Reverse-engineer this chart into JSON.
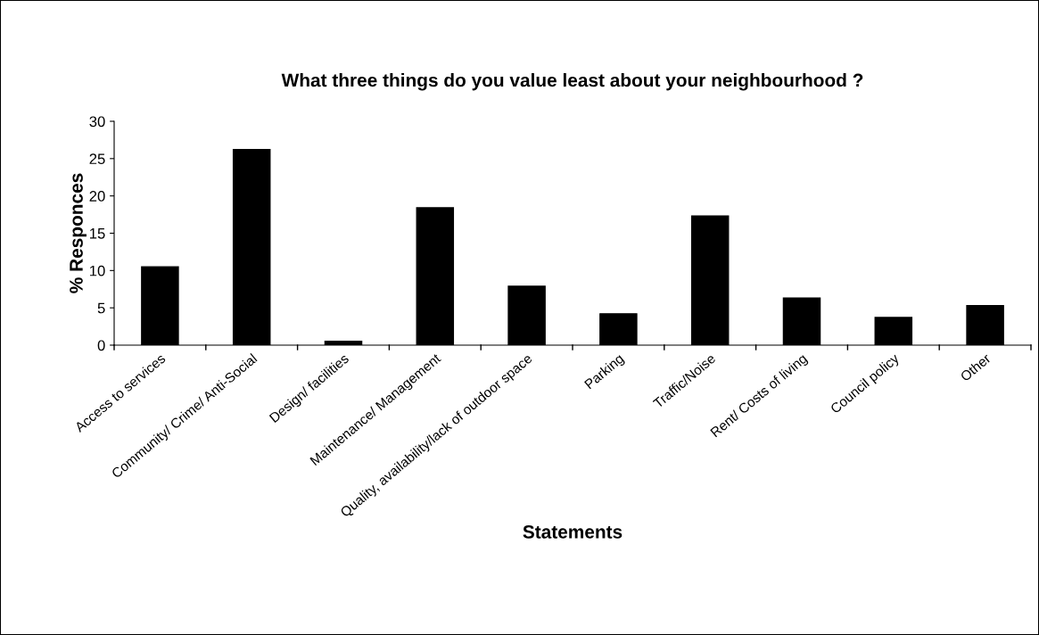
{
  "chart_data": {
    "type": "bar",
    "title": "What three things do you value least about your neighbourhood ?",
    "xlabel": "Statements",
    "ylabel": "% Responces",
    "categories": [
      "Access to services",
      "Community/ Crime/ Anti-Social",
      "Design/ facilities",
      "Maintenance/ Management",
      "Quality, availability/lack of outdoor space",
      "Parking",
      "Traffic/Noise",
      "Rent/ Costs of living",
      "Council policy",
      "Other"
    ],
    "values": [
      10.5,
      26.2,
      0.5,
      18.4,
      7.9,
      4.2,
      17.3,
      6.3,
      3.7,
      5.3
    ],
    "color": "#000000",
    "ylim": [
      0,
      30
    ],
    "yticks": [
      0,
      5,
      10,
      15,
      20,
      25,
      30
    ],
    "grid": false,
    "legend": false
  }
}
